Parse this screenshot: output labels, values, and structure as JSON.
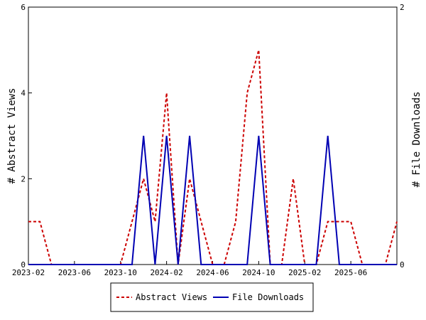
{
  "chart_data": {
    "type": "line",
    "x": [
      "2023-02",
      "2023-03",
      "2023-04",
      "2023-05",
      "2023-06",
      "2023-07",
      "2023-08",
      "2023-09",
      "2023-10",
      "2023-11",
      "2023-12",
      "2024-01",
      "2024-02",
      "2024-03",
      "2024-04",
      "2024-05",
      "2024-06",
      "2024-07",
      "2024-08",
      "2024-09",
      "2024-10",
      "2024-11",
      "2024-12",
      "2025-01",
      "2025-02",
      "2025-03",
      "2025-04",
      "2025-05",
      "2025-06",
      "2025-07",
      "2025-08",
      "2025-09",
      "2025-10"
    ],
    "x_tick_labels": [
      "2023-02",
      "2023-06",
      "2023-10",
      "2024-02",
      "2024-06",
      "2024-10",
      "2025-02",
      "2025-06"
    ],
    "series": [
      {
        "name": "Abstract Views",
        "axis": "left",
        "color": "#cc0000",
        "style": "dashed",
        "values": [
          1,
          1,
          0,
          0,
          0,
          0,
          0,
          0,
          0,
          1,
          2,
          1,
          4,
          0,
          2,
          1,
          0,
          0,
          1,
          4,
          5,
          0,
          0,
          2,
          0,
          0,
          1,
          1,
          1,
          0,
          0,
          0,
          1
        ]
      },
      {
        "name": "File Downloads",
        "axis": "right",
        "color": "#0000b3",
        "style": "solid",
        "values": [
          0,
          0,
          0,
          0,
          0,
          0,
          0,
          0,
          0,
          0,
          1,
          0,
          1,
          0,
          1,
          0,
          0,
          0,
          0,
          0,
          1,
          0,
          0,
          0,
          0,
          0,
          1,
          0,
          0,
          0,
          0,
          0,
          0
        ]
      }
    ],
    "ylabel": "# Abstract Views",
    "y2label": "# File Downloads",
    "ylim": [
      0,
      6
    ],
    "y2lim": [
      0,
      2
    ],
    "y_ticks": [
      "0",
      "2",
      "4",
      "6"
    ],
    "y2_ticks": [
      "0",
      "2"
    ],
    "legend_position": "bottom-center",
    "grid": false
  }
}
